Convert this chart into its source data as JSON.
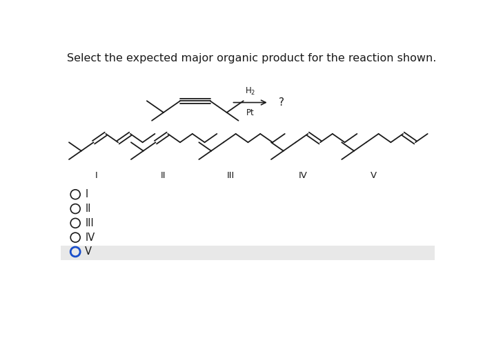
{
  "title": "Select the expected major organic product for the reaction shown.",
  "title_fontsize": 11.5,
  "background_color": "#ffffff",
  "answer_selected": "V",
  "options": [
    "I",
    "II",
    "III",
    "IV",
    "V"
  ],
  "radio_selected_index": 4,
  "bottom_bar_color": "#e8e8e8"
}
